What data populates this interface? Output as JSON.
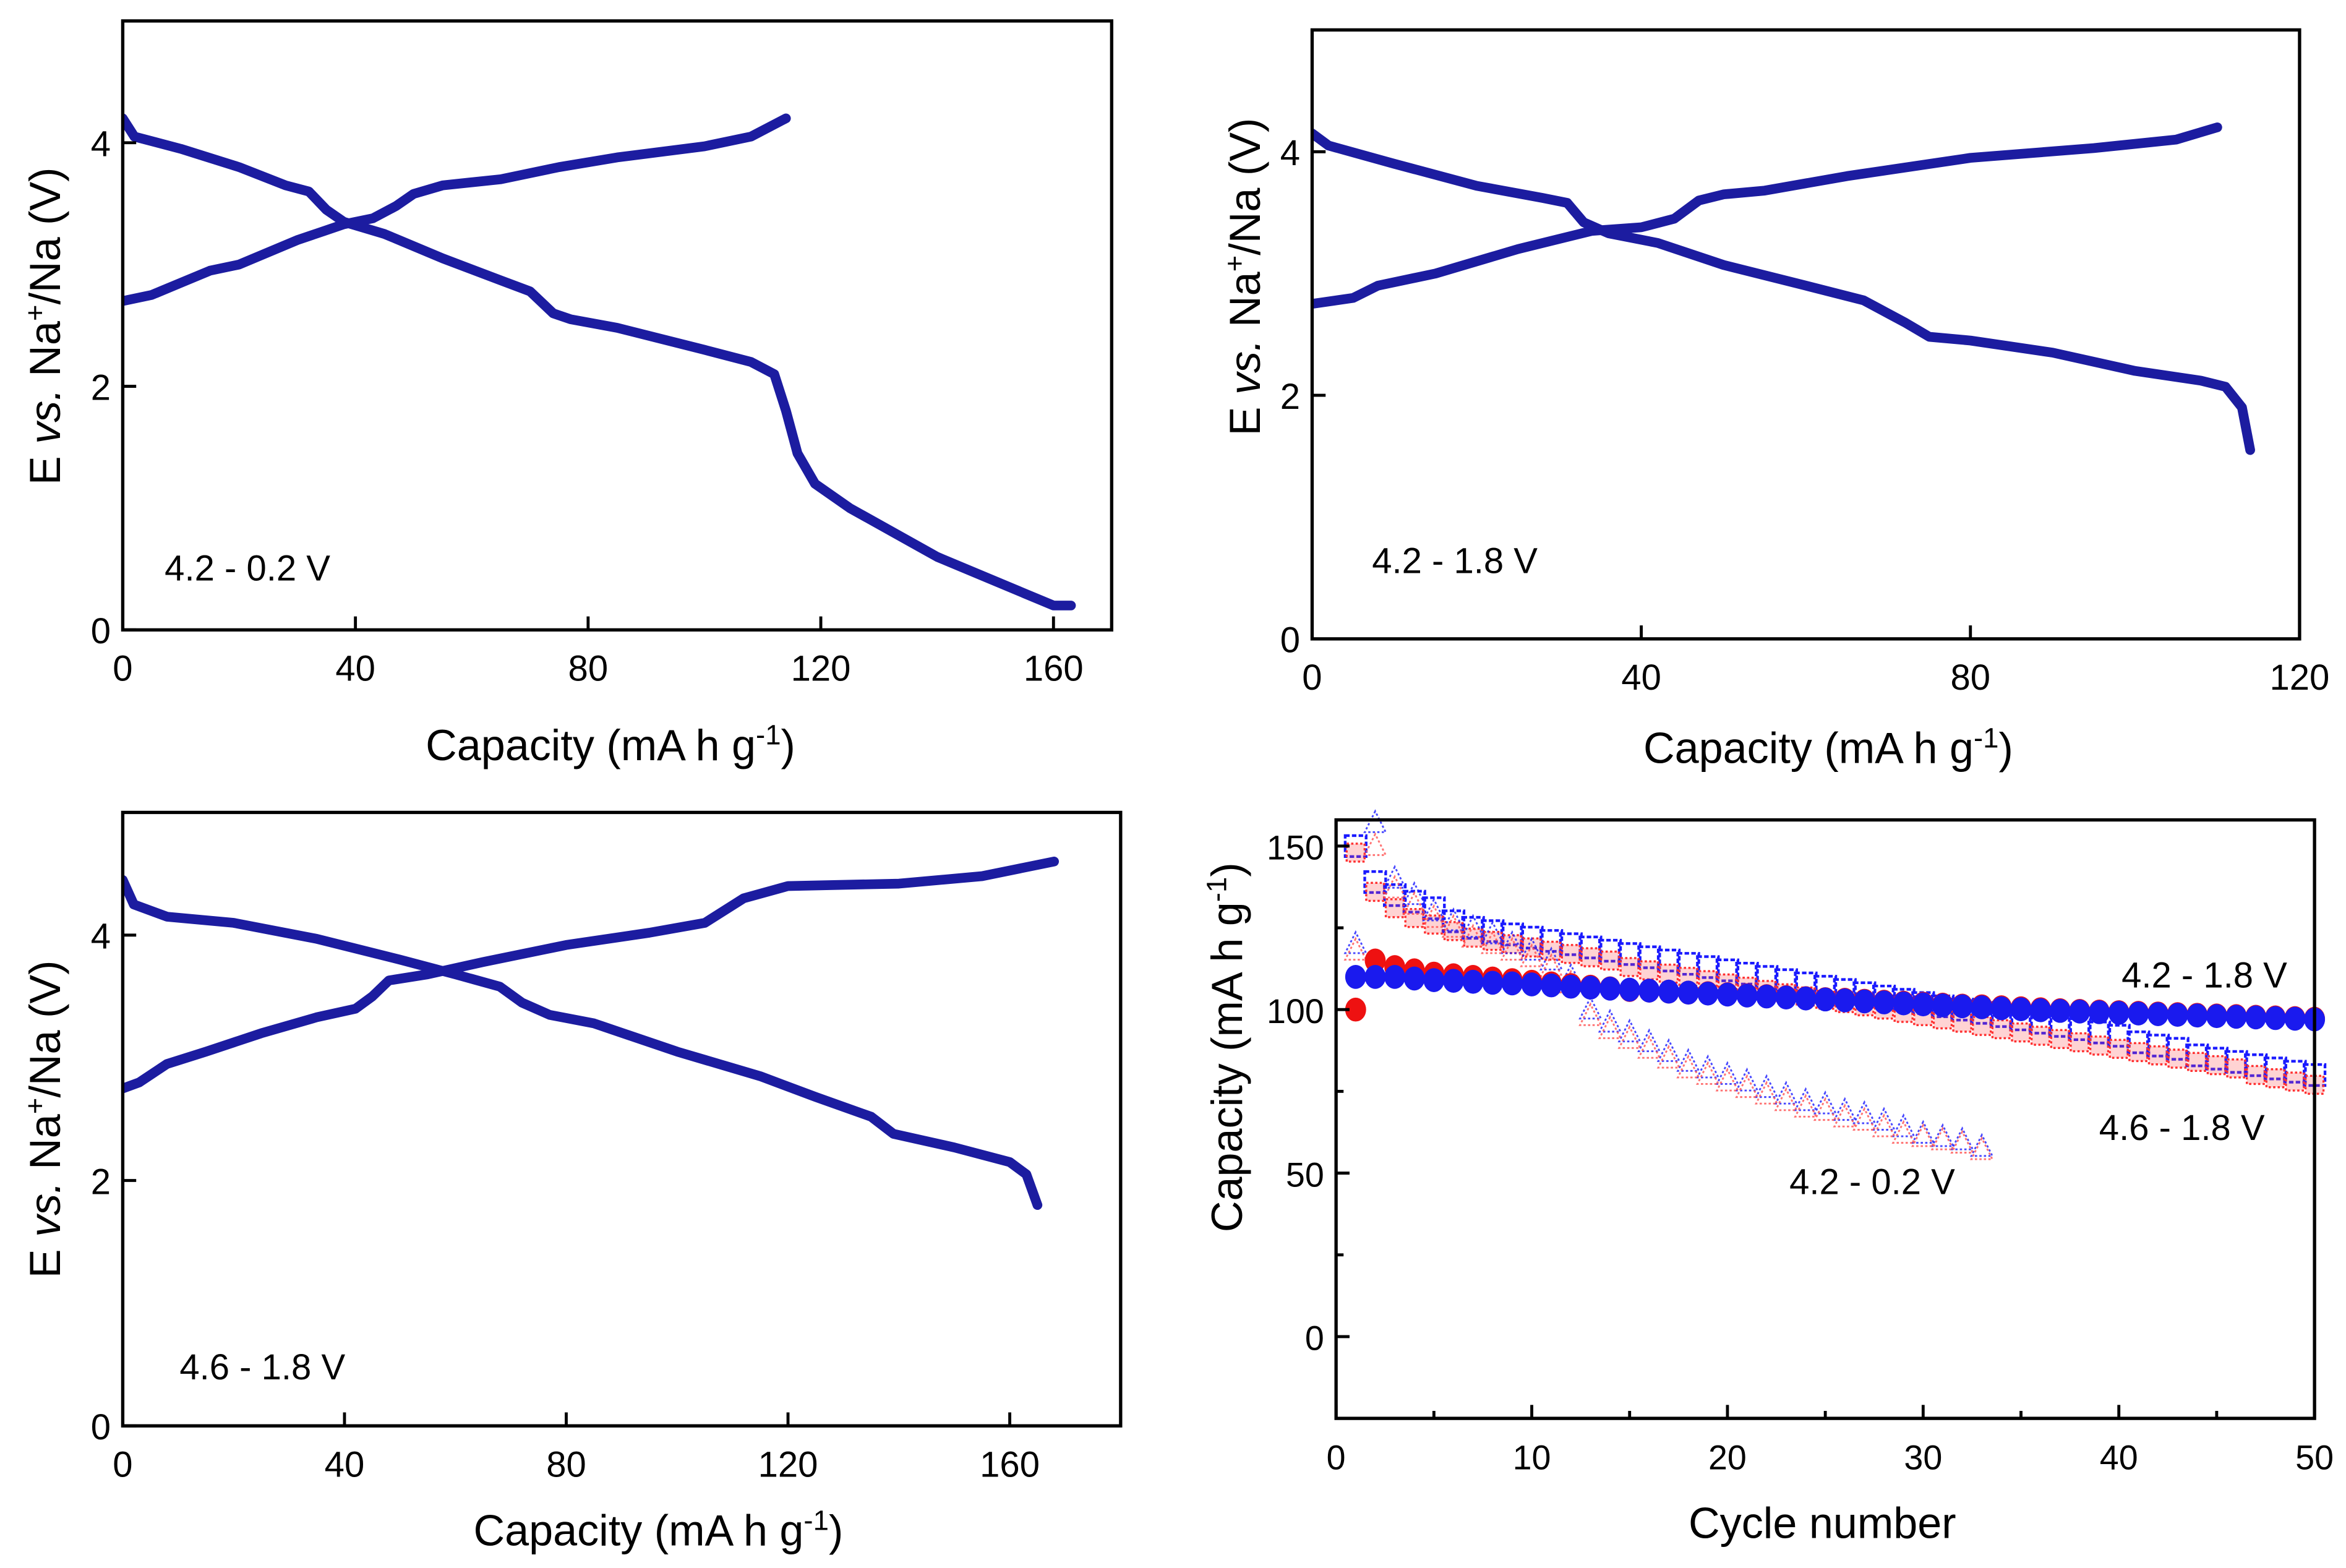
{
  "chart_data": [
    {
      "type": "line",
      "panel": "top-left",
      "xlabel": "Capacity (mA h g-1)",
      "ylabel": "E vs. Na+/Na (V)",
      "xlim": [
        0,
        170
      ],
      "ylim": [
        0,
        5
      ],
      "xticks": [
        0,
        40,
        80,
        120,
        160
      ],
      "yticks": [
        0,
        2,
        4
      ],
      "annotations": [
        "4.2 - 0.2 V"
      ],
      "series": [
        {
          "name": "charge",
          "color": "#1c1ca0",
          "points": [
            [
              0,
              2.7
            ],
            [
              5,
              2.75
            ],
            [
              10,
              2.85
            ],
            [
              15,
              2.95
            ],
            [
              20,
              3.0
            ],
            [
              30,
              3.2
            ],
            [
              38,
              3.33
            ],
            [
              43,
              3.38
            ],
            [
              47,
              3.48
            ],
            [
              50,
              3.58
            ],
            [
              55,
              3.65
            ],
            [
              65,
              3.7
            ],
            [
              75,
              3.8
            ],
            [
              85,
              3.88
            ],
            [
              100,
              3.97
            ],
            [
              108,
              4.05
            ],
            [
              114,
              4.2
            ]
          ]
        },
        {
          "name": "discharge",
          "color": "#1c1ca0",
          "points": [
            [
              0,
              4.2
            ],
            [
              2,
              4.05
            ],
            [
              10,
              3.95
            ],
            [
              20,
              3.8
            ],
            [
              28,
              3.65
            ],
            [
              32,
              3.6
            ],
            [
              35,
              3.45
            ],
            [
              38,
              3.35
            ],
            [
              45,
              3.25
            ],
            [
              55,
              3.05
            ],
            [
              65,
              2.87
            ],
            [
              70,
              2.78
            ],
            [
              74,
              2.6
            ],
            [
              77,
              2.55
            ],
            [
              85,
              2.48
            ],
            [
              100,
              2.3
            ],
            [
              108,
              2.2
            ],
            [
              112,
              2.1
            ],
            [
              114,
              1.8
            ],
            [
              116,
              1.45
            ],
            [
              119,
              1.2
            ],
            [
              125,
              1.0
            ],
            [
              140,
              0.6
            ],
            [
              155,
              0.3
            ],
            [
              160,
              0.2
            ],
            [
              163,
              0.2
            ]
          ]
        }
      ]
    },
    {
      "type": "line",
      "panel": "top-right",
      "xlabel": "Capacity (mA h g-1)",
      "ylabel": "E vs. Na+/Na (V)",
      "xlim": [
        0,
        120
      ],
      "ylim": [
        0,
        5
      ],
      "xticks": [
        0,
        40,
        80,
        120
      ],
      "yticks": [
        0,
        2,
        4
      ],
      "annotations": [
        "4.2 - 1.8 V"
      ],
      "series": [
        {
          "name": "charge",
          "color": "#1c1ca0",
          "points": [
            [
              0,
              2.75
            ],
            [
              5,
              2.8
            ],
            [
              8,
              2.9
            ],
            [
              15,
              3.0
            ],
            [
              25,
              3.2
            ],
            [
              34,
              3.35
            ],
            [
              40,
              3.38
            ],
            [
              44,
              3.45
            ],
            [
              47,
              3.6
            ],
            [
              50,
              3.65
            ],
            [
              55,
              3.68
            ],
            [
              65,
              3.8
            ],
            [
              80,
              3.95
            ],
            [
              95,
              4.03
            ],
            [
              105,
              4.1
            ],
            [
              110,
              4.2
            ]
          ]
        },
        {
          "name": "discharge",
          "color": "#1c1ca0",
          "points": [
            [
              0,
              4.15
            ],
            [
              2,
              4.05
            ],
            [
              10,
              3.9
            ],
            [
              20,
              3.72
            ],
            [
              28,
              3.62
            ],
            [
              31,
              3.58
            ],
            [
              33,
              3.42
            ],
            [
              36,
              3.33
            ],
            [
              42,
              3.25
            ],
            [
              50,
              3.07
            ],
            [
              60,
              2.9
            ],
            [
              67,
              2.78
            ],
            [
              72,
              2.6
            ],
            [
              75,
              2.48
            ],
            [
              80,
              2.45
            ],
            [
              90,
              2.35
            ],
            [
              100,
              2.2
            ],
            [
              108,
              2.12
            ],
            [
              111,
              2.07
            ],
            [
              113,
              1.9
            ],
            [
              114,
              1.55
            ]
          ]
        }
      ]
    },
    {
      "type": "line",
      "panel": "bottom-left",
      "xlabel": "Capacity (mA h g-1)",
      "ylabel": "E vs. Na+/Na (V)",
      "xlim": [
        0,
        180
      ],
      "ylim": [
        0,
        5
      ],
      "xticks": [
        0,
        40,
        80,
        120,
        160
      ],
      "yticks": [
        0,
        2,
        4
      ],
      "annotations": [
        "4.6 - 1.8 V"
      ],
      "series": [
        {
          "name": "charge",
          "color": "#1c1ca0",
          "points": [
            [
              0,
              2.75
            ],
            [
              3,
              2.8
            ],
            [
              8,
              2.95
            ],
            [
              15,
              3.05
            ],
            [
              25,
              3.2
            ],
            [
              35,
              3.33
            ],
            [
              42,
              3.4
            ],
            [
              45,
              3.5
            ],
            [
              48,
              3.63
            ],
            [
              55,
              3.68
            ],
            [
              65,
              3.78
            ],
            [
              80,
              3.92
            ],
            [
              95,
              4.02
            ],
            [
              105,
              4.1
            ],
            [
              112,
              4.3
            ],
            [
              120,
              4.4
            ],
            [
              140,
              4.42
            ],
            [
              155,
              4.48
            ],
            [
              168,
              4.6
            ]
          ]
        },
        {
          "name": "discharge",
          "color": "#1c1ca0",
          "points": [
            [
              0,
              4.45
            ],
            [
              2,
              4.25
            ],
            [
              8,
              4.15
            ],
            [
              20,
              4.1
            ],
            [
              35,
              3.97
            ],
            [
              50,
              3.8
            ],
            [
              60,
              3.68
            ],
            [
              68,
              3.58
            ],
            [
              72,
              3.45
            ],
            [
              77,
              3.35
            ],
            [
              85,
              3.28
            ],
            [
              100,
              3.05
            ],
            [
              115,
              2.85
            ],
            [
              125,
              2.68
            ],
            [
              135,
              2.52
            ],
            [
              139,
              2.38
            ],
            [
              150,
              2.27
            ],
            [
              160,
              2.15
            ],
            [
              163,
              2.05
            ],
            [
              165,
              1.8
            ]
          ]
        }
      ]
    },
    {
      "type": "scatter",
      "panel": "bottom-right",
      "xlabel": "Cycle number",
      "ylabel": "Capacity (mA h g-1)",
      "xlim": [
        0,
        50
      ],
      "ylim": [
        -25,
        158
      ],
      "xticks": [
        0,
        10,
        20,
        30,
        40,
        50
      ],
      "xminor": [
        5,
        15,
        25,
        35,
        45
      ],
      "yticks": [
        0,
        50,
        100,
        150
      ],
      "yminor": [
        25,
        75,
        125
      ],
      "annotations": [
        "4.2 - 1.8 V",
        "4.6 - 1.8 V",
        "4.2 - 0.2 V"
      ],
      "series": [
        {
          "name": "4.6 - 1.8 V charge",
          "marker": "open-square",
          "color": "#1a1aff",
          "values": [
            150,
            139,
            135,
            133,
            131,
            127,
            125,
            124,
            123,
            122,
            121,
            120,
            119,
            118,
            117,
            116,
            115,
            114,
            113,
            112,
            111,
            110,
            109,
            108,
            107,
            106,
            105,
            104,
            103,
            102,
            101,
            100,
            99,
            98,
            97,
            96,
            95,
            94,
            93,
            92,
            90,
            89,
            88,
            86,
            85,
            84,
            83,
            82,
            81,
            80
          ]
        },
        {
          "name": "4.6 - 1.8 V discharge",
          "marker": "hatched-square",
          "color": "#ff3030",
          "values": [
            148,
            136,
            131,
            128,
            126,
            124,
            122,
            121,
            120,
            119,
            118,
            117,
            116,
            115,
            113,
            112,
            111,
            110,
            109,
            108,
            107,
            106,
            105,
            104,
            103,
            102,
            101,
            100,
            99,
            98,
            97,
            96,
            95,
            94,
            93,
            92,
            91,
            90,
            89,
            88,
            87,
            86,
            85,
            84,
            83,
            82,
            80,
            79,
            78,
            77
          ]
        },
        {
          "name": "4.2 - 0.2 V charge",
          "marker": "open-triangle",
          "color": "#1a1aff",
          "values": [
            120,
            157,
            140,
            135,
            130,
            127,
            125,
            123,
            120,
            118,
            115,
            110,
            100,
            96,
            93,
            90,
            87,
            84,
            82,
            80,
            78,
            76,
            74,
            72,
            71,
            69,
            68,
            66,
            64,
            62,
            61,
            60,
            58
          ]
        },
        {
          "name": "4.2 - 0.2 V discharge",
          "marker": "open-triangle",
          "color": "#ff5050",
          "values": [
            118,
            150,
            137,
            132,
            128,
            125,
            122,
            120,
            118,
            116,
            113,
            108,
            98,
            94,
            91,
            88,
            85,
            82,
            80,
            78,
            76,
            74,
            72,
            70,
            69,
            67,
            66,
            64,
            62,
            61,
            60,
            59,
            57
          ]
        },
        {
          "name": "4.2 - 1.8 V charge",
          "marker": "filled-circle",
          "color": "#ee1111",
          "values": [
            100,
            115,
            113,
            112,
            111,
            110.5,
            110,
            109.5,
            109,
            108.5,
            108,
            107.5,
            107,
            106.5,
            106,
            105.8,
            105.5,
            105.2,
            105,
            104.7,
            104.4,
            104.1,
            103.8,
            103.5,
            103.2,
            103,
            102.7,
            102.4,
            102.1,
            101.8,
            101.5,
            101.2,
            101,
            100.7,
            100.4,
            100.1,
            99.8,
            99.6,
            99.4,
            99.2,
            99,
            98.8,
            98.6,
            98.4,
            98.2,
            98,
            97.8,
            97.6,
            97.4,
            97.2
          ]
        },
        {
          "name": "4.2 - 1.8 V discharge",
          "marker": "filled-circle",
          "color": "#1a1aee",
          "values": [
            110,
            110,
            110,
            109.5,
            109,
            108.8,
            108.5,
            108.2,
            108,
            107.7,
            107.4,
            107,
            106.7,
            106.4,
            106.1,
            105.8,
            105.5,
            105.2,
            104.9,
            104.6,
            104.3,
            104,
            103.7,
            103.4,
            103.1,
            102.8,
            102.5,
            102.2,
            101.9,
            101.6,
            101.3,
            101,
            100.7,
            100.4,
            100.1,
            99.8,
            99.6,
            99.4,
            99.2,
            99,
            98.8,
            98.6,
            98.4,
            98.2,
            98,
            97.8,
            97.6,
            97.4,
            97.2,
            97
          ]
        }
      ]
    }
  ]
}
